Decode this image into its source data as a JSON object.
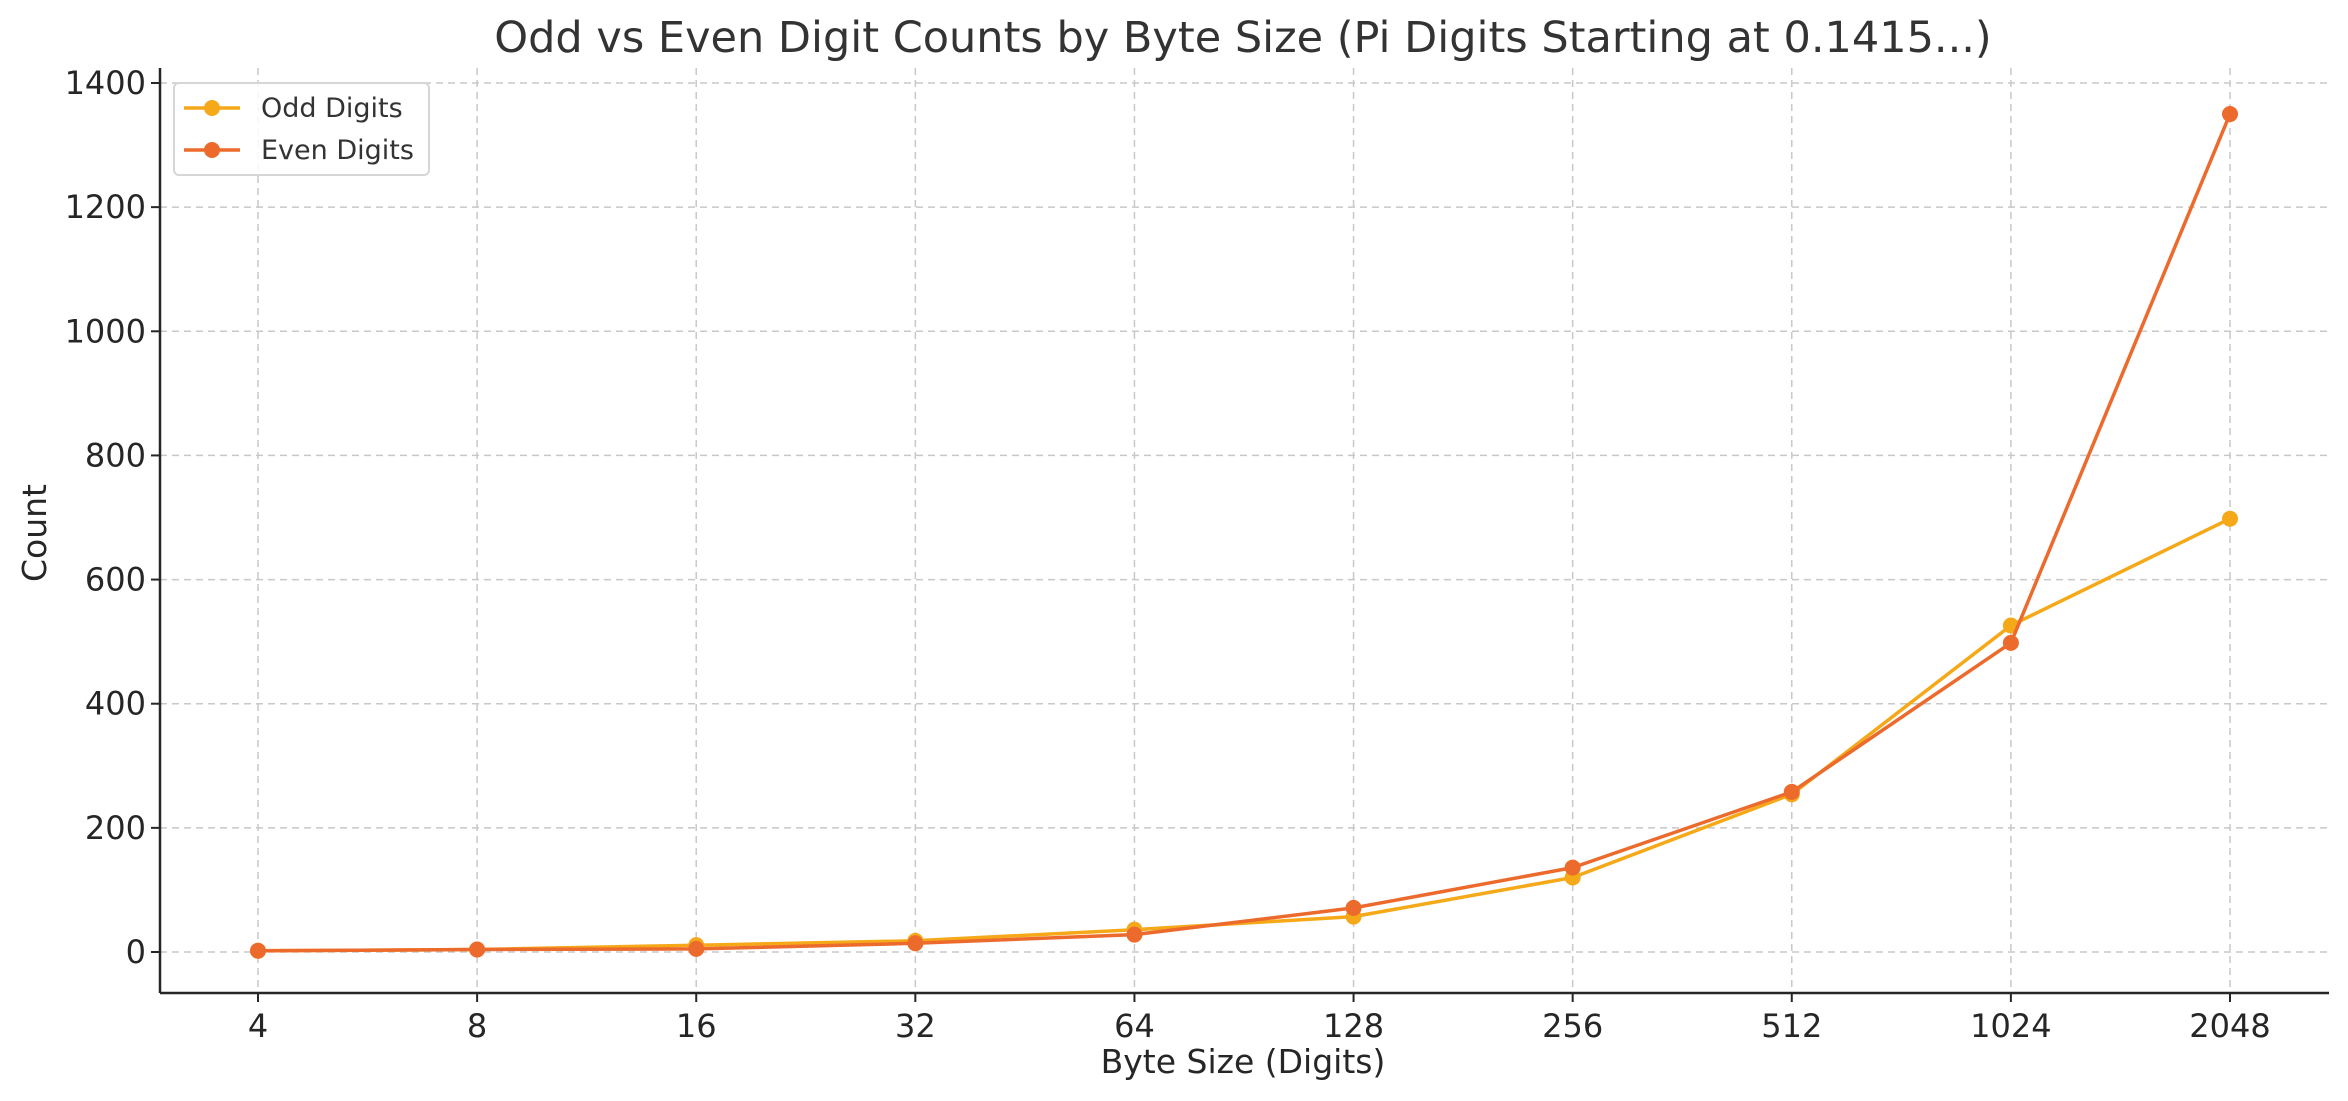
{
  "chart_data": {
    "type": "line",
    "title": "Odd vs Even Digit Counts by Byte Size (Pi Digits Starting at 0.1415...)",
    "xlabel": "Byte Size (Digits)",
    "ylabel": "Count",
    "categories": [
      "4",
      "8",
      "16",
      "32",
      "64",
      "128",
      "256",
      "512",
      "1024",
      "2048"
    ],
    "yticks": [
      "0",
      "200",
      "400",
      "600",
      "800",
      "1000",
      "1200",
      "1400"
    ],
    "ylim": [
      -65,
      1420
    ],
    "grid": true,
    "legend_position": "top-left",
    "series": [
      {
        "name": "Odd Digits",
        "color": "#f5a818",
        "values": [
          2,
          4,
          11,
          18,
          36,
          57,
          120,
          254,
          526,
          698
        ]
      },
      {
        "name": "Even Digits",
        "color": "#ec6a2c",
        "values": [
          2,
          4,
          5,
          14,
          28,
          71,
          136,
          258,
          498,
          1350
        ]
      }
    ]
  }
}
